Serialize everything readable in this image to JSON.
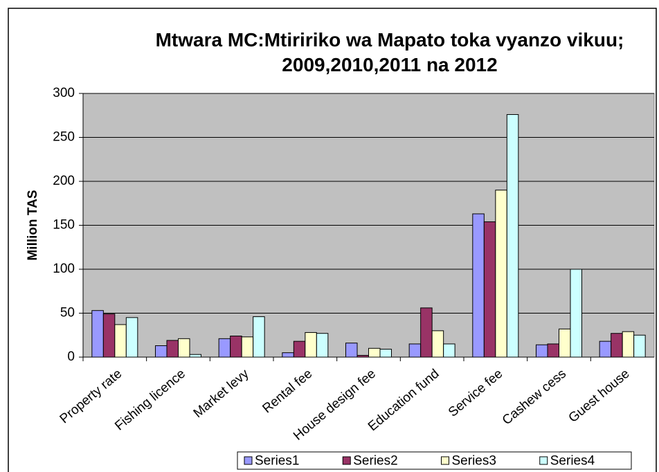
{
  "chart_data": {
    "type": "bar",
    "title": "Mtwara MC:Mtiririko wa Mapato toka vyanzo vikuu; 2009,2010,2011 na 2012",
    "y_label": "Million TAS",
    "categories": [
      "Property rate",
      "Fishing licence",
      "Market levy",
      "Rental fee",
      "House design fee",
      "Education fund",
      "Service fee",
      "Cashew cess",
      "Guest house"
    ],
    "series": [
      {
        "name": "Series1",
        "color": "#9999ff",
        "values": [
          53,
          13,
          21,
          5,
          16,
          15,
          163,
          14,
          18
        ]
      },
      {
        "name": "Series2",
        "color": "#993366",
        "values": [
          49,
          19,
          24,
          18,
          2,
          56,
          154,
          15,
          27
        ]
      },
      {
        "name": "Series3",
        "color": "#ffffcc",
        "values": [
          37,
          21,
          23,
          28,
          10,
          30,
          190,
          32,
          29
        ]
      },
      {
        "name": "Series4",
        "color": "#ccffff",
        "values": [
          45,
          3,
          46,
          27,
          9,
          15,
          276,
          100,
          25
        ]
      }
    ],
    "ylim": [
      0,
      300
    ],
    "yticks": [
      0,
      50,
      100,
      150,
      200,
      250,
      300
    ],
    "grid": true,
    "legend": "bottom"
  }
}
